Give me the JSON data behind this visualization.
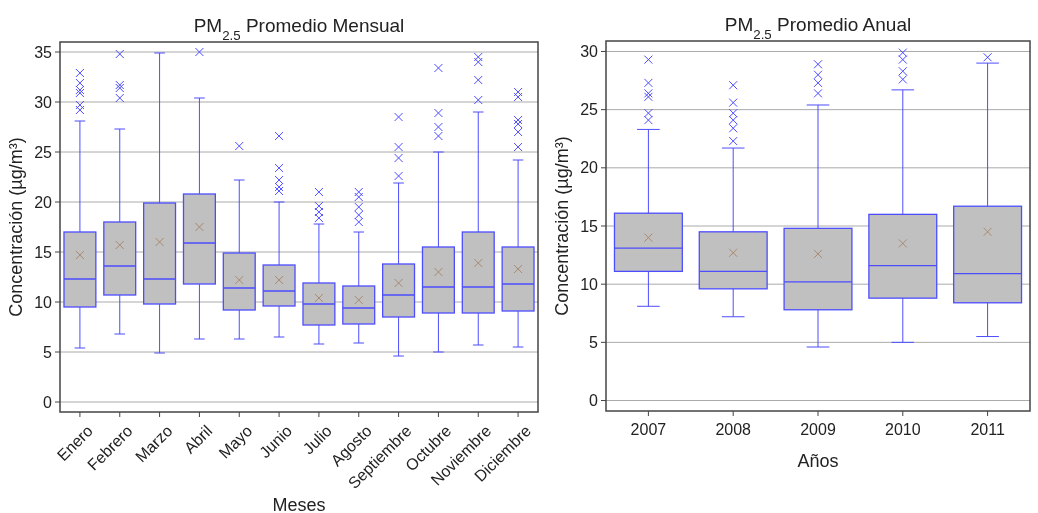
{
  "chart_data": [
    {
      "type": "box",
      "title": "PM$_{2.5}$ Promedio Mensual",
      "xlabel": "Meses",
      "ylabel": "Concentración  (µg/m³)",
      "categories": [
        "Enero",
        "Febrero",
        "Marzo",
        "Abril",
        "Mayo",
        "Junio",
        "Julio",
        "Agosto",
        "Septiembre",
        "Octubre",
        "Noviembre",
        "Diciembre"
      ],
      "ylim": [
        -1,
        36
      ],
      "yticks": [
        0,
        5,
        10,
        15,
        20,
        25,
        30,
        35
      ],
      "grid": "y",
      "marker": "cross",
      "series": [
        {
          "color": "#4d4dff",
          "boxes": [
            {
              "low": 5.4,
              "q1": 9.5,
              "median": 12.3,
              "q3": 17.0,
              "high": 28.1,
              "mean": 14.7,
              "outliers": [
                32.9,
                31.9,
                31.2,
                30.9,
                29.7,
                29.2
              ]
            },
            {
              "low": 6.8,
              "q1": 10.7,
              "median": 13.6,
              "q3": 18.0,
              "high": 27.3,
              "mean": 15.7,
              "outliers": [
                34.8,
                31.7,
                31.4,
                30.4
              ]
            },
            {
              "low": 4.9,
              "q1": 9.8,
              "median": 12.3,
              "q3": 19.9,
              "high": 34.9,
              "mean": 16.0
            },
            {
              "low": 6.3,
              "q1": 11.8,
              "median": 15.9,
              "q3": 20.8,
              "high": 30.4,
              "mean": 17.5,
              "outliers": [
                35.0
              ]
            },
            {
              "low": 6.3,
              "q1": 9.2,
              "median": 11.4,
              "q3": 14.9,
              "high": 22.2,
              "mean": 12.2,
              "outliers": [
                25.6
              ]
            },
            {
              "low": 6.5,
              "q1": 9.6,
              "median": 11.1,
              "q3": 13.7,
              "high": 20.0,
              "mean": 12.2,
              "outliers": [
                26.6,
                23.4,
                22.2,
                21.5,
                21.1
              ]
            },
            {
              "low": 5.8,
              "q1": 7.7,
              "median": 9.8,
              "q3": 11.9,
              "high": 17.8,
              "mean": 10.4,
              "outliers": [
                21.0,
                19.6,
                19.0,
                18.4
              ]
            },
            {
              "low": 5.9,
              "q1": 7.8,
              "median": 9.4,
              "q3": 11.6,
              "high": 17.0,
              "mean": 10.2,
              "outliers": [
                21.0,
                20.5,
                19.5,
                18.7,
                18.0
              ]
            },
            {
              "low": 4.6,
              "q1": 8.5,
              "median": 10.7,
              "q3": 13.8,
              "high": 21.9,
              "mean": 11.9,
              "outliers": [
                28.5,
                25.5,
                24.4,
                22.6
              ]
            },
            {
              "low": 5.0,
              "q1": 8.9,
              "median": 11.5,
              "q3": 15.5,
              "high": 25.0,
              "mean": 13.0,
              "outliers": [
                33.4,
                28.9,
                27.5,
                26.6
              ]
            },
            {
              "low": 5.7,
              "q1": 8.9,
              "median": 11.5,
              "q3": 17.0,
              "high": 29.0,
              "mean": 13.9,
              "outliers": [
                34.5,
                34.0,
                32.2,
                30.2
              ]
            },
            {
              "low": 5.5,
              "q1": 9.1,
              "median": 11.8,
              "q3": 15.5,
              "high": 24.2,
              "mean": 13.3,
              "outliers": [
                31.0,
                30.5,
                28.2,
                27.8,
                27.0,
                25.5
              ]
            }
          ]
        }
      ]
    },
    {
      "type": "box",
      "title": "PM$_{2.5}$ Promedio Anual",
      "xlabel": "Años",
      "ylabel": "Concentración  (µg/m³)",
      "categories": [
        "2007",
        "2008",
        "2009",
        "2010",
        "2011"
      ],
      "ylim": [
        -0.9,
        30.9
      ],
      "yticks": [
        0,
        5,
        10,
        15,
        20,
        25,
        30
      ],
      "grid": "y",
      "marker": "cross",
      "series": [
        {
          "color": "#4d4dff",
          "boxes": [
            {
              "low": 8.1,
              "q1": 11.1,
              "median": 13.1,
              "q3": 16.1,
              "high": 23.3,
              "mean": 14.0,
              "outliers": [
                29.3,
                27.3,
                26.4,
                26.1,
                24.7,
                24.1
              ]
            },
            {
              "low": 7.2,
              "q1": 9.6,
              "median": 11.1,
              "q3": 14.5,
              "high": 21.7,
              "mean": 12.7,
              "outliers": [
                27.1,
                25.6,
                24.7,
                24.1,
                23.4,
                22.3
              ]
            },
            {
              "low": 4.6,
              "q1": 7.8,
              "median": 10.2,
              "q3": 14.8,
              "high": 25.4,
              "mean": 12.6,
              "outliers": [
                28.9,
                28.0,
                27.3,
                26.4
              ]
            },
            {
              "low": 5.0,
              "q1": 8.8,
              "median": 11.6,
              "q3": 16.0,
              "high": 26.7,
              "mean": 13.5,
              "outliers": [
                29.9,
                29.3,
                28.3,
                27.6
              ]
            },
            {
              "low": 5.5,
              "q1": 8.4,
              "median": 10.9,
              "q3": 16.7,
              "high": 29.0,
              "mean": 14.5,
              "outliers": [
                29.5
              ]
            }
          ]
        }
      ]
    }
  ]
}
